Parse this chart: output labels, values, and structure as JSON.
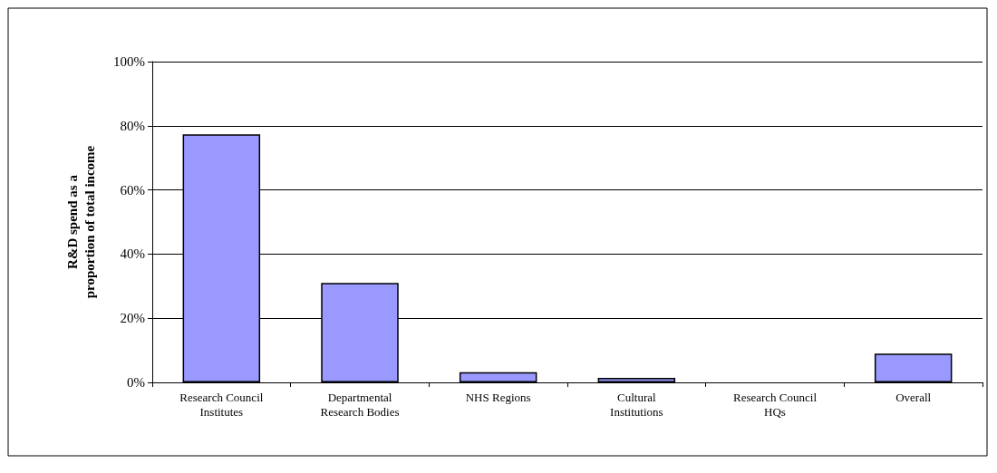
{
  "chart_data": {
    "type": "bar",
    "ylabel": "R&D spend as a proportion of total income",
    "categories": [
      "Research Council Institutes",
      "Departmental Research Bodies",
      "NHS Regions",
      "Cultural Institutions",
      "Research Council HQs",
      "Overall"
    ],
    "values": [
      77.3,
      31.0,
      3.2,
      1.4,
      0,
      9.0
    ],
    "color": "#9999ff",
    "ylim": [
      0,
      100
    ],
    "yticks": [
      {
        "value": 0,
        "label": "0%"
      },
      {
        "value": 20,
        "label": "20%"
      },
      {
        "value": 40,
        "label": "40%"
      },
      {
        "value": 60,
        "label": "60%"
      },
      {
        "value": 80,
        "label": "80%"
      },
      {
        "value": 100,
        "label": "100%"
      }
    ],
    "grid": "y"
  }
}
